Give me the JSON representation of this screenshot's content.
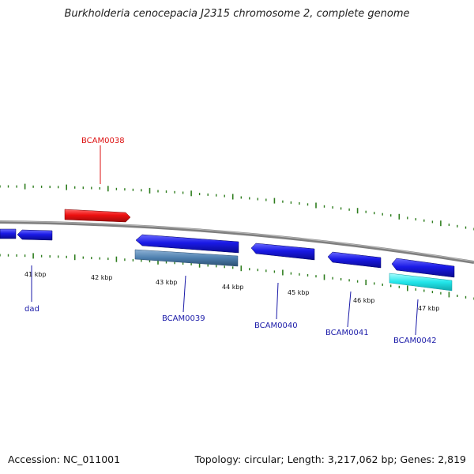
{
  "title": "Burkholderia cenocepacia J2315 chromosome 2, complete genome",
  "footer": {
    "accession": "Accession: NC_011001",
    "summary": "Topology: circular; Length: 3,217,062 bp; Genes: 2,819"
  },
  "colors": {
    "backbone": "#7f7f7f",
    "tick": "#2e7d1e",
    "gene_forward": "#ee1111",
    "gene_reverse": "#1a1ae6",
    "highlight_steel": "#4d7fae",
    "highlight_cyan": "#22e6ea",
    "label_blue": "#1a1aa8",
    "label_red": "#dd1111"
  },
  "scale": {
    "labels": [
      "41 kbp",
      "42 kbp",
      "43 kbp",
      "44 kbp",
      "45 kbp",
      "46 kbp",
      "47 kbp"
    ]
  },
  "genes": [
    {
      "label": "BCAM0038",
      "strand": "forward"
    },
    {
      "label": "dad",
      "strand": "reverse"
    },
    {
      "label": "BCAM0039",
      "strand": "reverse"
    },
    {
      "label": "BCAM0040",
      "strand": "reverse"
    },
    {
      "label": "BCAM0041",
      "strand": "reverse"
    },
    {
      "label": "BCAM0042",
      "strand": "reverse"
    }
  ]
}
